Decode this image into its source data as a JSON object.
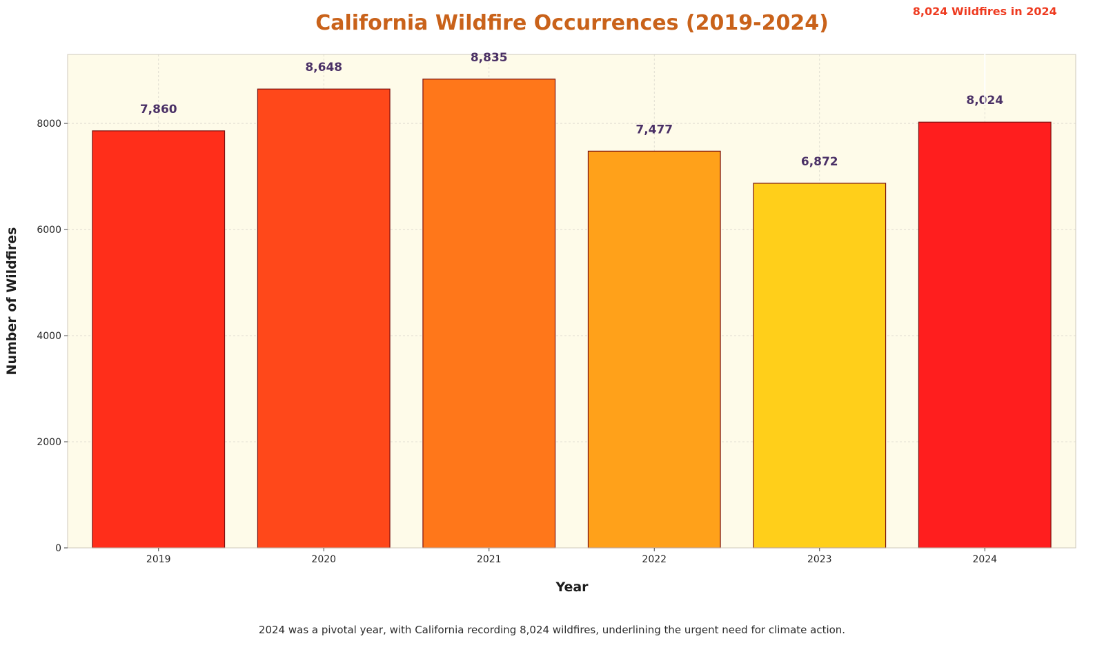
{
  "chart_data": {
    "type": "bar",
    "title": "California Wildfire Occurrences (2019-2024)",
    "xlabel": "Year",
    "ylabel": "Number of Wildfires",
    "categories": [
      "2019",
      "2020",
      "2021",
      "2022",
      "2023",
      "2024"
    ],
    "values": [
      7860,
      8648,
      8835,
      7477,
      6872,
      8024
    ],
    "value_labels": [
      "7,860",
      "8,648",
      "8,835",
      "7,477",
      "6,872",
      "8,024"
    ],
    "bar_colors": [
      "#ff2e1a",
      "#ff481a",
      "#ff771a",
      "#ffa11a",
      "#ffcf1a",
      "#ff1e1e"
    ],
    "bar_edge_color": "#7a1010",
    "ylim": [
      0,
      9300
    ],
    "yticks": [
      0,
      2000,
      4000,
      6000,
      8000
    ],
    "grid": true,
    "annotation": {
      "text": "8,024 Wildfires in 2024",
      "category": "2024",
      "color": "#ee3a1f"
    },
    "caption": "2024 was a pivotal year, with California recording 8,024 wildfires, underlining the urgent need for climate action.",
    "colors": {
      "title": "#c9621a",
      "plot_background": "#fefbe9",
      "value_label": "#4a3066",
      "grid": "#d9d6cc"
    }
  }
}
